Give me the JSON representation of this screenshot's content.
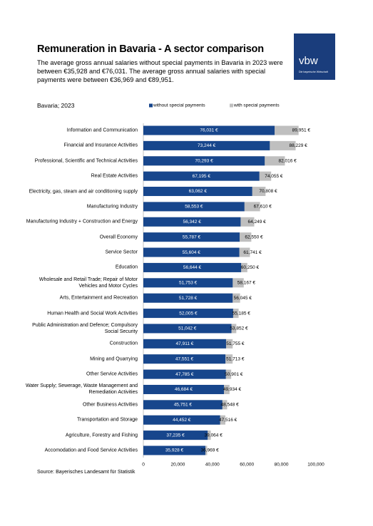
{
  "logo": {
    "name": "vbw",
    "tagline": "Die bayerische Wirtschaft"
  },
  "chart_data": {
    "type": "bar",
    "orientation": "horizontal",
    "title": "Remuneration in Bavaria  - A sector comparison",
    "subtitle": "The average gross annual salaries without special payments in Bavaria in 2023 were between €35,928 and €76,031. The average gross annual salaries with special payments were between €36,969 and €89,951.",
    "annotation": "Bavaria; 2023",
    "source": "Source: Bayerisches Landesamt für Statistik",
    "categories": [
      "Information and Communication",
      "Financial and Insurance Activities",
      "Professional, Scientific and Technical Activities",
      "Real Estate Activities",
      "Electricity, gas, steam and air conditioning supply",
      "Manufacturing Industry",
      "Manufacturing Industry + Construction and Energy",
      "Overall Economy",
      "Service Sector",
      "Education",
      "Wholesale and Retail Trade; Repair of Motor Vehicles and Motor Cycles",
      "Arts, Entertainment and Recreation",
      "Human Health and Social Work Activities",
      "Public Administration and Defence; Compulsory Social Security",
      "Construction",
      "Mining and Quarrying",
      "Other Service Activities",
      "Water Supply; Sewerage, Waste Management and Remediation Activities",
      "Other Business Activities",
      "Transportation and Storage",
      "Agriculture, Forestry and Fishing",
      "Accomodation and Food Service Activities"
    ],
    "series": [
      {
        "name": "without special payments",
        "color": "#17468c",
        "values": [
          76031,
          73244,
          70293,
          67195,
          63062,
          58553,
          56342,
          55787,
          55604,
          56644,
          51753,
          51728,
          52005,
          51042,
          47911,
          47551,
          47785,
          46684,
          45751,
          44452,
          37235,
          35928
        ],
        "value_labels": [
          "76,031 €",
          "73,244 €",
          "70,293 €",
          "67,195 €",
          "63,062 €",
          "58,553 €",
          "56,342 €",
          "55,787 €",
          "55,604 €",
          "56,644 €",
          "51,753 €",
          "51,728 €",
          "52,005 €",
          "51,042 €",
          "47,911 €",
          "47,551 €",
          "47,785 €",
          "46,684 €",
          "45,751 €",
          "44,452 €",
          "37,235 €",
          "35,928 €"
        ]
      },
      {
        "name": "with special payments",
        "color": "#bfbfbf",
        "values": [
          89951,
          88229,
          82016,
          74055,
          70808,
          67610,
          64249,
          62550,
          61741,
          60250,
          58167,
          56045,
          55185,
          53852,
          51755,
          51713,
          50901,
          49934,
          48548,
          47516,
          39064,
          36969
        ],
        "value_labels": [
          "89,951 €",
          "88,229 €",
          "82,016 €",
          "74,055 €",
          "70,808 €",
          "67,610 €",
          "64,249 €",
          "62,550 €",
          "61,741 €",
          "60,250 €",
          "58,167 €",
          "56,045 €",
          "55,185 €",
          "53,852 €",
          "51,755 €",
          "51,713 €",
          "50,901 €",
          "49,934 €",
          "48,548 €",
          "47,516 €",
          "39,064 €",
          "36,969 €"
        ]
      }
    ],
    "xlim": [
      0,
      100000
    ],
    "xticks": [
      0,
      {
        "value": 20000,
        "label": "20,000"
      },
      {
        "value": 40000,
        "label": "40,000"
      },
      {
        "value": 60000,
        "label": "60,000"
      },
      {
        "value": 80000,
        "label": "80,000"
      },
      {
        "value": 100000,
        "label": "100,000"
      }
    ],
    "grid": false
  }
}
